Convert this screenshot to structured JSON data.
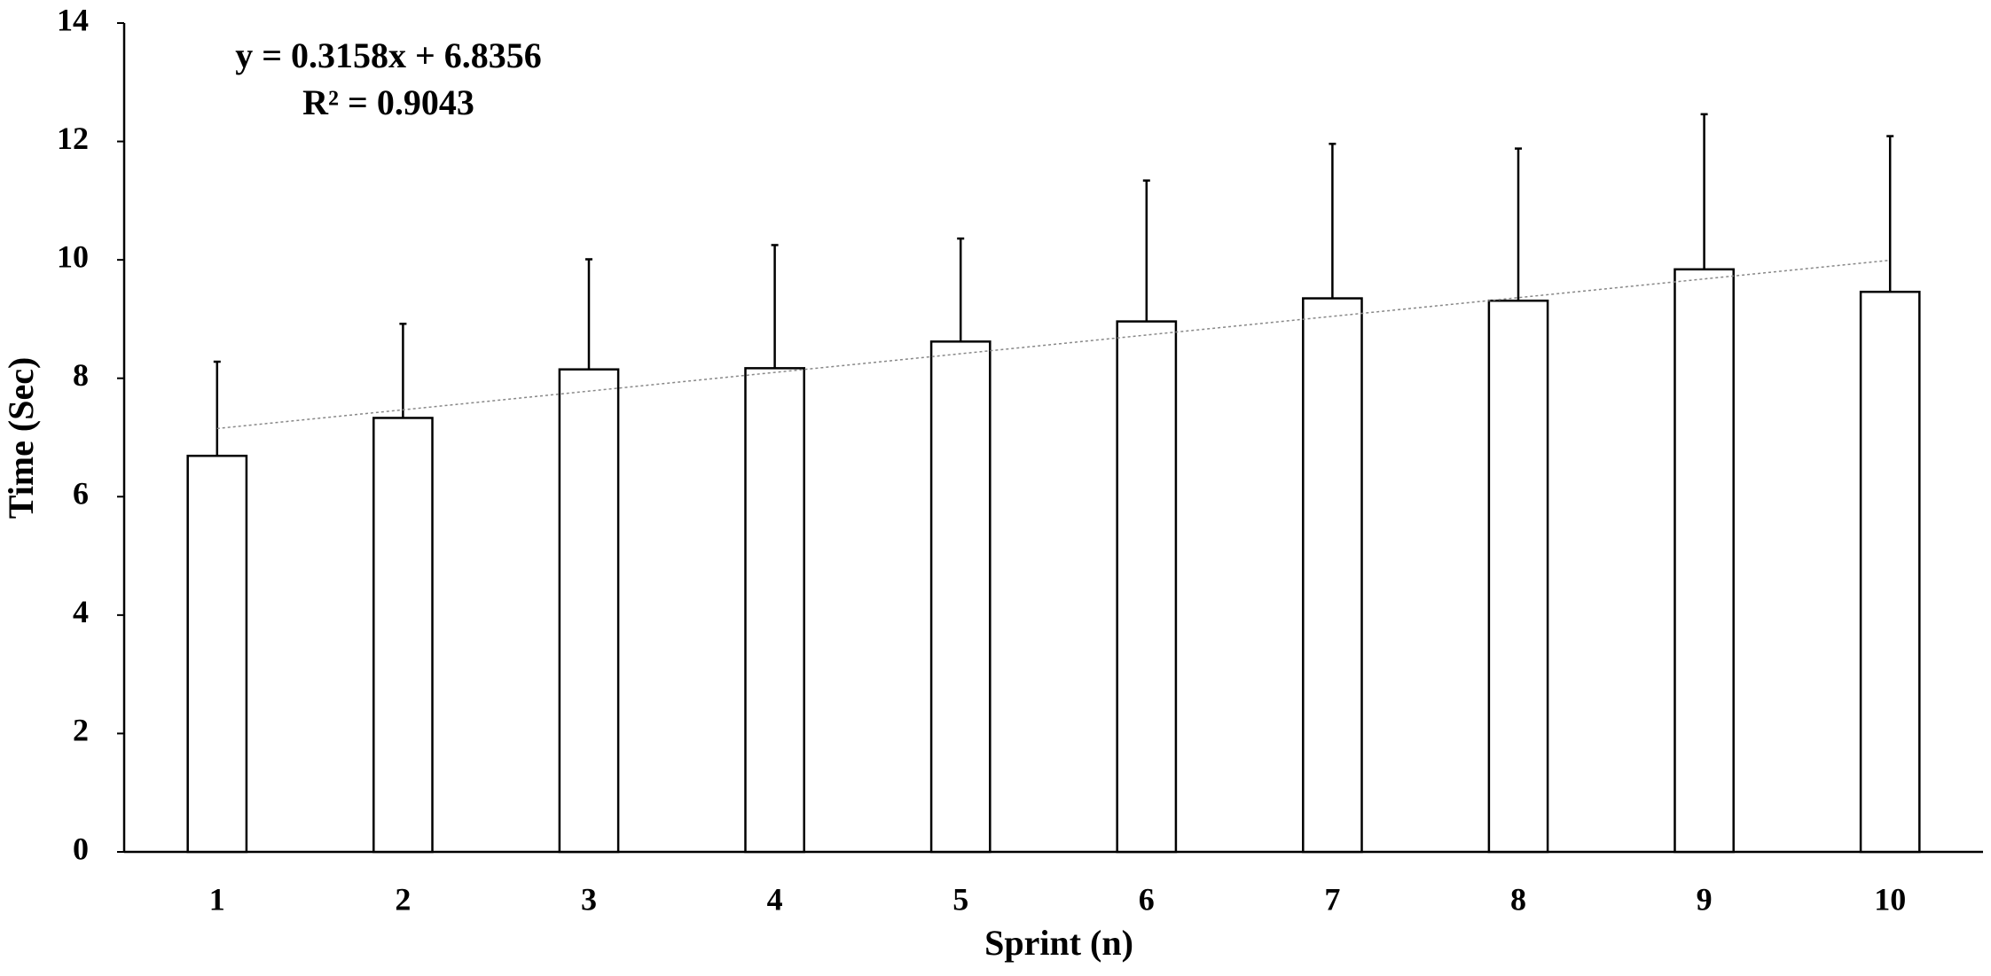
{
  "chart_data": {
    "type": "bar",
    "x_label": "Sprint (n)",
    "y_label": "Time (Sec)",
    "categories": [
      "1",
      "2",
      "3",
      "4",
      "5",
      "6",
      "7",
      "8",
      "9",
      "10"
    ],
    "values": [
      6.69,
      7.33,
      8.15,
      8.17,
      8.62,
      8.96,
      9.35,
      9.31,
      9.84,
      9.46
    ],
    "errors": [
      1.59,
      1.59,
      1.86,
      2.08,
      1.74,
      2.38,
      2.61,
      2.57,
      2.62,
      2.63
    ],
    "color": "#ffffff",
    "edge_color": "#000000",
    "ylim": [
      0,
      14
    ],
    "yticks": [
      0,
      2,
      4,
      6,
      8,
      10,
      12,
      14
    ],
    "trendline": {
      "slope": 0.3158,
      "intercept": 6.8356,
      "label": "y = 0.3158x + 6.8356",
      "color": "#888888"
    },
    "annotation": "R² = 0.9043",
    "grid": false
  }
}
